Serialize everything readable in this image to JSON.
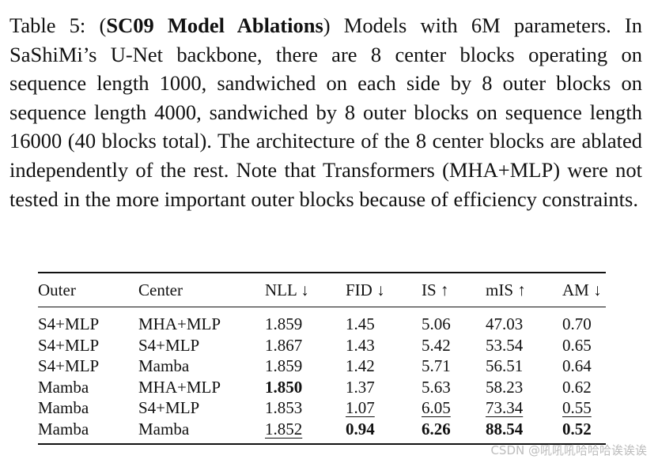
{
  "caption": {
    "label": "Table 5: (",
    "bold_title": "SC09 Model Ablations",
    "rest": ") Models with 6M parameters. In SaShiMi’s U-Net backbone, there are 8 center blocks operating on sequence length 1000, sandwiched on each side by 8 outer blocks on sequence length 4000, sandwiched by 8 outer blocks on sequence length 16000 (40 blocks total). The architecture of the 8 center blocks are ablated independently of the rest. Note that Transformers (MHA+MLP) were not tested in the more important outer blocks because of efficiency constraints."
  },
  "table": {
    "headers": [
      "Outer",
      "Center",
      "NLL ↓",
      "FID ↓",
      "IS ↑",
      "mIS ↑",
      "AM ↓"
    ],
    "rows": [
      {
        "cells": [
          "S4+MLP",
          "MHA+MLP",
          "1.859",
          "1.45",
          "5.06",
          "47.03",
          "0.70"
        ],
        "bold": [],
        "underline": []
      },
      {
        "cells": [
          "S4+MLP",
          "S4+MLP",
          "1.867",
          "1.43",
          "5.42",
          "53.54",
          "0.65"
        ],
        "bold": [],
        "underline": []
      },
      {
        "cells": [
          "S4+MLP",
          "Mamba",
          "1.859",
          "1.42",
          "5.71",
          "56.51",
          "0.64"
        ],
        "bold": [],
        "underline": []
      },
      {
        "cells": [
          "Mamba",
          "MHA+MLP",
          "1.850",
          "1.37",
          "5.63",
          "58.23",
          "0.62"
        ],
        "bold": [
          2
        ],
        "underline": []
      },
      {
        "cells": [
          "Mamba",
          "S4+MLP",
          "1.853",
          "1.07",
          "6.05",
          "73.34",
          "0.55"
        ],
        "bold": [],
        "underline": [
          3,
          4,
          5,
          6
        ]
      },
      {
        "cells": [
          "Mamba",
          "Mamba",
          "1.852",
          "0.94",
          "6.26",
          "88.54",
          "0.52"
        ],
        "bold": [
          3,
          4,
          5,
          6
        ],
        "underline": [
          2
        ]
      }
    ]
  },
  "watermark": "CSDN @吼吼吼哈哈哈诶诶诶"
}
